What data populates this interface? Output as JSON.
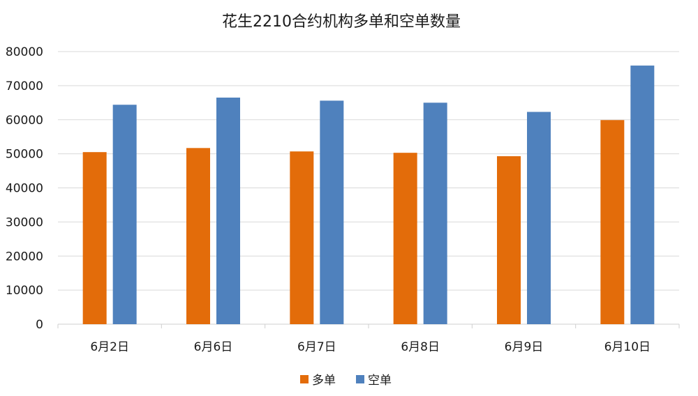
{
  "chart_data": {
    "type": "bar",
    "title": "花生2210合约机构多单和空单数量",
    "categories": [
      "6月2日",
      "6月6日",
      "6月7日",
      "6月8日",
      "6月9日",
      "6月10日"
    ],
    "series": [
      {
        "name": "多单",
        "color": "#E36C0A",
        "values": [
          50500,
          51700,
          50700,
          50300,
          49300,
          59900
        ]
      },
      {
        "name": "空单",
        "color": "#4F81BD",
        "values": [
          64400,
          66500,
          65600,
          65000,
          62300,
          75900
        ]
      }
    ],
    "ylim": [
      0,
      80000
    ],
    "yticks": [
      0,
      10000,
      20000,
      30000,
      40000,
      50000,
      60000,
      70000,
      80000
    ],
    "xlabel": "",
    "ylabel": "",
    "grid": true,
    "legend_position": "bottom"
  }
}
